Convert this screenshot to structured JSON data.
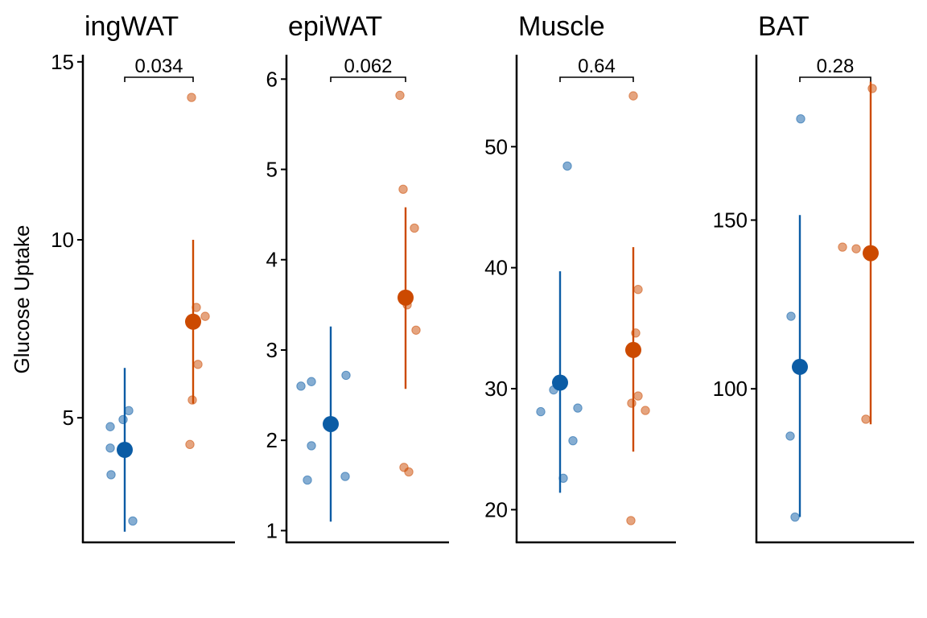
{
  "chart_data": {
    "type": "scatter",
    "ylabel": "Glucose Uptake",
    "group_colors": [
      "#0b5ca5",
      "#cc4a00"
    ],
    "panels": [
      {
        "title": "ingWAT",
        "ylim": [
          1.5,
          15.2
        ],
        "yticks": [
          5,
          10,
          15
        ],
        "pvalue": "0.034",
        "groups": [
          {
            "points": [
              4.75,
              4.15,
              3.4,
              4.95,
              5.2,
              2.1
            ],
            "mean": 4.1,
            "err_low": 1.8,
            "err_high": 6.4
          },
          {
            "points": [
              14.0,
              8.1,
              7.85,
              6.5,
              5.5,
              4.25
            ],
            "mean": 7.7,
            "err_low": 5.4,
            "err_high": 10.0
          }
        ]
      },
      {
        "title": "epiWAT",
        "ylim": [
          0.87,
          6.27
        ],
        "yticks": [
          1,
          2,
          3,
          4,
          5,
          6
        ],
        "pvalue": "0.062",
        "groups": [
          {
            "points": [
              2.6,
              2.65,
              2.72,
              1.94,
              1.56,
              1.6
            ],
            "mean": 2.18,
            "err_low": 1.1,
            "err_high": 3.26
          },
          {
            "points": [
              5.82,
              4.78,
              4.35,
              3.5,
              3.22,
              1.7,
              1.65
            ],
            "mean": 3.58,
            "err_low": 2.57,
            "err_high": 4.58
          }
        ]
      },
      {
        "title": "Muscle",
        "ylim": [
          17.3,
          57.6
        ],
        "yticks": [
          20,
          30,
          40,
          50
        ],
        "pvalue": "0.64",
        "groups": [
          {
            "points": [
              48.4,
              29.9,
              28.1,
              28.4,
              25.7,
              22.6
            ],
            "mean": 30.5,
            "err_low": 21.4,
            "err_high": 39.7
          },
          {
            "points": [
              54.2,
              38.2,
              34.6,
              29.4,
              28.8,
              28.2,
              19.1
            ],
            "mean": 33.2,
            "err_low": 24.8,
            "err_high": 41.7
          }
        ]
      },
      {
        "title": "BAT",
        "ylim": [
          54.5,
          199
        ],
        "yticks": [
          100,
          150
        ],
        "pvalue": "0.28",
        "groups": [
          {
            "points": [
              180,
              121.5,
              86,
              62
            ],
            "mean": 106.5,
            "err_low": 62,
            "err_high": 151.5
          },
          {
            "points": [
              189,
              142,
              141.5,
              91
            ],
            "mean": 140.2,
            "err_low": 89.5,
            "err_high": 191
          }
        ]
      }
    ]
  }
}
